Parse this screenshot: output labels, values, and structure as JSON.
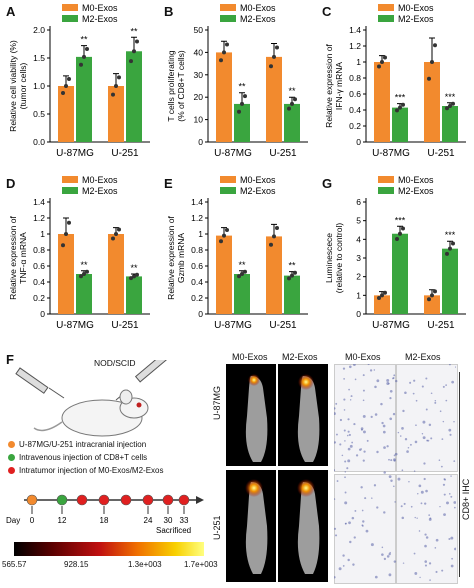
{
  "colors": {
    "m0": "#f28a2e",
    "m2": "#3aa53f",
    "grid": "#000000"
  },
  "legend": {
    "m0": "M0-Exos",
    "m2": "M2-Exos"
  },
  "panels": {
    "A": {
      "label": "A"
    },
    "B": {
      "label": "B"
    },
    "C": {
      "label": "C"
    },
    "D": {
      "label": "D"
    },
    "E": {
      "label": "E"
    },
    "G": {
      "label": "G"
    },
    "F": {
      "label": "F"
    }
  },
  "chart_data": [
    {
      "id": "A",
      "type": "bar",
      "categories": [
        "U-87MG",
        "U-251"
      ],
      "ylabel": "Relative cell viability (%)\n(tumor cells)",
      "ylim": [
        0,
        2.0
      ],
      "yticks": [
        "0.0",
        "0.5",
        "1.0",
        "1.5",
        "2.0"
      ],
      "ytickvals": [
        0,
        0.5,
        1.0,
        1.5,
        2.0
      ],
      "series": [
        {
          "name": "M0-Exos",
          "values": [
            1.0,
            1.0
          ],
          "err": [
            0.18,
            0.22
          ]
        },
        {
          "name": "M2-Exos",
          "values": [
            1.52,
            1.62
          ],
          "err": [
            0.2,
            0.25
          ]
        }
      ],
      "sig": [
        "**",
        "**"
      ]
    },
    {
      "id": "B",
      "type": "bar",
      "categories": [
        "U-87MG",
        "U-251"
      ],
      "ylabel": "T cells proliferating\n(% of CD8+T cells)",
      "ylim": [
        0,
        50
      ],
      "yticks": [
        "0",
        "10",
        "20",
        "30",
        "40",
        "50"
      ],
      "ytickvals": [
        0,
        10,
        20,
        30,
        40,
        50
      ],
      "series": [
        {
          "name": "M0-Exos",
          "values": [
            40,
            38
          ],
          "err": [
            5,
            6
          ]
        },
        {
          "name": "M2-Exos",
          "values": [
            17,
            17
          ],
          "err": [
            5,
            3
          ]
        }
      ],
      "sig": [
        "**",
        "**"
      ]
    },
    {
      "id": "C",
      "type": "bar",
      "categories": [
        "U-87MG",
        "U-251"
      ],
      "ylabel": "Relative expression of\nIFN-γ mRNA",
      "ylim": [
        0,
        1.4
      ],
      "yticks": [
        "0",
        "0.2",
        "0.4",
        "0.6",
        "0.8",
        "1",
        "1.2",
        "1.4"
      ],
      "ytickvals": [
        0,
        0.2,
        0.4,
        0.6,
        0.8,
        1.0,
        1.2,
        1.4
      ],
      "series": [
        {
          "name": "M0-Exos",
          "values": [
            1.0,
            1.0
          ],
          "err": [
            0.08,
            0.3
          ]
        },
        {
          "name": "M2-Exos",
          "values": [
            0.43,
            0.45
          ],
          "err": [
            0.05,
            0.04
          ]
        }
      ],
      "sig": [
        "***",
        "***"
      ]
    },
    {
      "id": "D",
      "type": "bar",
      "categories": [
        "U-87MG",
        "U-251"
      ],
      "ylabel": "Relative expression of\nTNF-α mRNA",
      "ylim": [
        0,
        1.4
      ],
      "yticks": [
        "0",
        "0.2",
        "0.4",
        "0.6",
        "0.8",
        "1",
        "1.2",
        "1.4"
      ],
      "ytickvals": [
        0,
        0.2,
        0.4,
        0.6,
        0.8,
        1.0,
        1.2,
        1.4
      ],
      "series": [
        {
          "name": "M0-Exos",
          "values": [
            1.0,
            1.0
          ],
          "err": [
            0.2,
            0.08
          ]
        },
        {
          "name": "M2-Exos",
          "values": [
            0.5,
            0.47
          ],
          "err": [
            0.04,
            0.03
          ]
        }
      ],
      "sig": [
        "**",
        "**"
      ]
    },
    {
      "id": "E",
      "type": "bar",
      "categories": [
        "U-87MG",
        "U-251"
      ],
      "ylabel": "Relative expression of\nGzmb mRNA",
      "ylim": [
        0,
        1.4
      ],
      "yticks": [
        "0",
        "0.2",
        "0.4",
        "0.6",
        "0.8",
        "1",
        "1.2",
        "1.4"
      ],
      "ytickvals": [
        0,
        0.2,
        0.4,
        0.6,
        0.8,
        1.0,
        1.2,
        1.4
      ],
      "series": [
        {
          "name": "M0-Exos",
          "values": [
            0.98,
            0.97
          ],
          "err": [
            0.1,
            0.15
          ]
        },
        {
          "name": "M2-Exos",
          "values": [
            0.5,
            0.48
          ],
          "err": [
            0.04,
            0.05
          ]
        }
      ],
      "sig": [
        "**",
        "**"
      ]
    },
    {
      "id": "G",
      "type": "bar",
      "categories": [
        "U-87MG",
        "U-251"
      ],
      "ylabel": "Luminescece\n(relative to control)",
      "ylim": [
        0,
        6
      ],
      "yticks": [
        "0",
        "1",
        "2",
        "3",
        "4",
        "5",
        "6"
      ],
      "ytickvals": [
        0,
        1,
        2,
        3,
        4,
        5,
        6
      ],
      "series": [
        {
          "name": "M0-Exos",
          "values": [
            1.0,
            1.0
          ],
          "err": [
            0.2,
            0.3
          ]
        },
        {
          "name": "M2-Exos",
          "values": [
            4.3,
            3.5
          ],
          "err": [
            0.4,
            0.4
          ]
        }
      ],
      "sig": [
        "***",
        "***"
      ]
    }
  ],
  "schematic": {
    "mouse_label": "NOD/SCID",
    "steps": [
      {
        "text": "U-87MG/U-251 intracranial injection",
        "color": "#f28a2e"
      },
      {
        "text": "Intravenous injection of CD8+T cells",
        "color": "#3aa53f"
      },
      {
        "text": "Intratumor injection of M0-Exos/M2-Exos",
        "color": "#e02020"
      }
    ],
    "timeline": {
      "day_label": "Day",
      "days": [
        "0",
        "12",
        "18",
        "24",
        "30",
        "33"
      ],
      "sacrificed": "Sacrificed"
    },
    "colorbar": {
      "ticks": [
        "565.57",
        "928.15",
        "1.3e+003",
        "1.7e+003"
      ]
    }
  },
  "imaging": {
    "col_headers": [
      "M0-Exos",
      "M2-Exos"
    ],
    "row_labels": [
      "U-87MG",
      "U-251"
    ]
  },
  "ihc": {
    "col_headers": [
      "M0-Exos",
      "M2-Exos"
    ],
    "side_label": "CD8+ IHC"
  }
}
